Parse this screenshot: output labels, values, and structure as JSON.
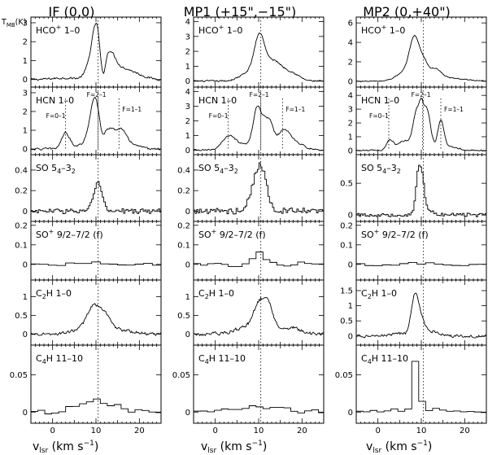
{
  "chart_data": {
    "type": "line",
    "y_axis_label": "T_MB(K)",
    "x_axis_label": "v_lsr (km s^-1)",
    "xlim": [
      -5,
      25
    ],
    "x_ticks": [
      0,
      10,
      20
    ],
    "reference_velocity": 10.5,
    "columns": [
      {
        "title": "IF (0,0)"
      },
      {
        "title": "MP1 (+15\",−15\")"
      },
      {
        "title": "MP2 (0,+40\")"
      }
    ],
    "rows": [
      {
        "label": "HCO+ 1–0",
        "label_main": "HCO",
        "label_sup": "+",
        "label_tail": " 1–0"
      },
      {
        "label": "HCN 1–0",
        "label_main": "HCN 1–0",
        "label_sup": "",
        "label_tail": ""
      },
      {
        "label": "SO 5_4–3_2",
        "label_main": "SO 5",
        "label_sub1": "4",
        "label_mid": "–3",
        "label_sub2": "2"
      },
      {
        "label": "SO+ 9/2–7/2 (f)",
        "label_main": "SO",
        "label_sup": "+",
        "label_tail": " 9/2–7/2 (f)"
      },
      {
        "label": "C2H 1–0",
        "label_main": "C",
        "label_sub1": "2",
        "label_tail": "H 1–0"
      },
      {
        "label": "C4H 11–10",
        "label_main": "C",
        "label_sub1": "4",
        "label_tail": "H 11–10"
      }
    ],
    "hyperfine_labels": {
      "f01": "F=0–1",
      "f21": "F=2–1",
      "f11": "F=1–1"
    },
    "panels": [
      [
        {
          "ylim": [
            -0.4,
            3.3
          ],
          "yticks": [
            0,
            1,
            2,
            3
          ],
          "ytick_labels": [
            "0",
            "1",
            "2",
            "3"
          ],
          "step": false,
          "noise": 0.05,
          "components": [
            [
              8.3,
              1.0,
              0.5
            ],
            [
              10.1,
              1.0,
              2.8
            ],
            [
              11.5,
              0.6,
              -1.4
            ],
            [
              13.0,
              1.3,
              1.2
            ],
            [
              15.5,
              2.5,
              0.5
            ],
            [
              19.0,
              2.5,
              0.2
            ],
            [
              3.0,
              3.0,
              0.08
            ]
          ]
        },
        {
          "ylim": [
            -0.3,
            3.3
          ],
          "yticks": [
            0,
            1,
            2,
            3
          ],
          "ytick_labels": [
            "0",
            "1",
            "2",
            "3"
          ],
          "step": false,
          "noise": 0.05,
          "hyperfine": [
            3.0,
            10.5,
            15.3
          ],
          "components": [
            [
              3.0,
              0.9,
              0.8
            ],
            [
              9.8,
              1.2,
              2.6
            ],
            [
              11.3,
              0.6,
              -0.5
            ],
            [
              13.0,
              1.0,
              0.9
            ],
            [
              15.5,
              1.2,
              0.9
            ],
            [
              17.5,
              2.0,
              0.3
            ],
            [
              7.0,
              3.0,
              0.2
            ]
          ]
        },
        {
          "ylim": [
            -0.1,
            0.55
          ],
          "yticks": [
            0,
            0.2,
            0.4
          ],
          "ytick_labels": [
            "0",
            "0.2",
            "0.4"
          ],
          "step": true,
          "noise": 0.025,
          "components": [
            [
              10.7,
              0.8,
              0.22
            ],
            [
              9.8,
              1.0,
              0.08
            ]
          ]
        },
        {
          "ylim": [
            -0.08,
            0.22
          ],
          "yticks": [
            0,
            0.1,
            0.2
          ],
          "ytick_labels": [
            "0",
            "0.1",
            "0.2"
          ],
          "step": true,
          "noise": 0.008,
          "bins": 2.0,
          "components": [
            [
              10.0,
              3.0,
              0.012
            ]
          ]
        },
        {
          "ylim": [
            -0.3,
            1.45
          ],
          "yticks": [
            0,
            0.5,
            1
          ],
          "ytick_labels": [
            "0",
            "0.5",
            "1"
          ],
          "step": false,
          "noise": 0.035,
          "components": [
            [
              9.6,
              1.6,
              0.72
            ],
            [
              12.3,
              1.2,
              0.3
            ],
            [
              15.0,
              3.0,
              0.12
            ],
            [
              6.0,
              2.0,
              0.1
            ]
          ]
        },
        {
          "ylim": [
            -0.015,
            0.09
          ],
          "yticks": [
            0,
            0.05
          ],
          "ytick_labels": [
            "0",
            "0.05"
          ],
          "step": true,
          "noise": 0.003,
          "bins": 1.6,
          "components": [
            [
              10.0,
              4.0,
              0.016
            ]
          ]
        }
      ],
      [
        {
          "ylim": [
            -0.4,
            4.3
          ],
          "yticks": [
            0,
            1,
            2,
            3,
            4
          ],
          "ytick_labels": [
            "0",
            "1",
            "2",
            "3",
            "4"
          ],
          "step": false,
          "noise": 0.05,
          "components": [
            [
              10.2,
              1.2,
              2.8
            ],
            [
              13.5,
              1.8,
              1.3
            ],
            [
              17.5,
              1.8,
              0.55
            ],
            [
              7.5,
              2.0,
              0.5
            ]
          ]
        },
        {
          "ylim": [
            -0.3,
            4.3
          ],
          "yticks": [
            0,
            1,
            2,
            3,
            4
          ],
          "ytick_labels": [
            "0",
            "1",
            "2",
            "3",
            "4"
          ],
          "step": false,
          "noise": 0.05,
          "hyperfine": [
            3.0,
            10.5,
            15.5
          ],
          "components": [
            [
              3.0,
              1.5,
              0.8
            ],
            [
              9.8,
              1.0,
              2.9
            ],
            [
              11.3,
              0.5,
              0.4
            ],
            [
              12.4,
              0.9,
              1.9
            ],
            [
              15.8,
              1.6,
              1.3
            ],
            [
              19.0,
              2.0,
              0.35
            ],
            [
              6.0,
              2.5,
              0.35
            ]
          ]
        },
        {
          "ylim": [
            -0.1,
            0.55
          ],
          "yticks": [
            0,
            0.2,
            0.4
          ],
          "ytick_labels": [
            "0",
            "0.2",
            "0.4"
          ],
          "step": true,
          "noise": 0.03,
          "components": [
            [
              10.0,
              1.2,
              0.38
            ],
            [
              11.5,
              1.0,
              0.15
            ],
            [
              8.0,
              1.2,
              0.06
            ]
          ]
        },
        {
          "ylim": [
            -0.08,
            0.22
          ],
          "yticks": [
            0,
            0.1,
            0.2
          ],
          "ytick_labels": [
            "0",
            "0.1",
            "0.2"
          ],
          "step": true,
          "noise": 0.012,
          "bins": 1.6,
          "components": [
            [
              10.2,
              1.5,
              0.055
            ]
          ]
        },
        {
          "ylim": [
            -0.3,
            1.45
          ],
          "yticks": [
            0,
            0.5,
            1
          ],
          "ytick_labels": [
            "0",
            "0.5",
            "1"
          ],
          "step": false,
          "noise": 0.04,
          "components": [
            [
              10.0,
              1.4,
              0.75
            ],
            [
              12.3,
              1.2,
              0.7
            ],
            [
              17.5,
              2.0,
              0.17
            ],
            [
              6.0,
              2.0,
              0.15
            ]
          ]
        },
        {
          "ylim": [
            -0.015,
            0.09
          ],
          "yticks": [
            0,
            0.05
          ],
          "ytick_labels": [
            "0",
            "0.05"
          ],
          "step": true,
          "noise": 0.003,
          "bins": 1.6,
          "components": [
            [
              10.0,
              5.0,
              0.008
            ]
          ]
        }
      ],
      [
        {
          "ylim": [
            -0.6,
            6.6
          ],
          "yticks": [
            0,
            2,
            4,
            6
          ],
          "ytick_labels": [
            "0",
            "2",
            "4",
            "6"
          ],
          "step": false,
          "noise": 0.05,
          "components": [
            [
              8.5,
              1.2,
              4.3
            ],
            [
              10.7,
              0.8,
              1.2
            ],
            [
              13.0,
              1.5,
              1.2
            ],
            [
              6.0,
              2.0,
              0.8
            ],
            [
              17.0,
              3.0,
              0.3
            ]
          ]
        },
        {
          "ylim": [
            -0.3,
            4.6
          ],
          "yticks": [
            0,
            1,
            2,
            3,
            4
          ],
          "ytick_labels": [
            "0",
            "1",
            "2",
            "3",
            "4"
          ],
          "step": false,
          "noise": 0.05,
          "hyperfine": [
            2.5,
            10.3,
            14.5
          ],
          "components": [
            [
              2.8,
              0.8,
              0.8
            ],
            [
              6.0,
              1.2,
              0.7
            ],
            [
              9.0,
              0.9,
              2.9
            ],
            [
              10.0,
              0.4,
              1.0
            ],
            [
              11.2,
              0.9,
              3.0
            ],
            [
              14.5,
              0.7,
              2.0
            ],
            [
              16.5,
              2.0,
              0.3
            ]
          ]
        },
        {
          "ylim": [
            -0.1,
            0.95
          ],
          "yticks": [
            0,
            0.5
          ],
          "ytick_labels": [
            "0",
            "0.5"
          ],
          "step": true,
          "noise": 0.03,
          "components": [
            [
              9.5,
              0.7,
              0.72
            ],
            [
              10.5,
              0.6,
              0.25
            ],
            [
              12.5,
              1.0,
              0.05
            ]
          ]
        },
        {
          "ylim": [
            -0.08,
            0.22
          ],
          "yticks": [
            0,
            0.1,
            0.2
          ],
          "ytick_labels": [
            "0",
            "0.1",
            "0.2"
          ],
          "step": true,
          "noise": 0.008,
          "bins": 2.0,
          "components": [
            [
              10.0,
              4.0,
              0.005
            ]
          ]
        },
        {
          "ylim": [
            -0.3,
            1.85
          ],
          "yticks": [
            0,
            0.5,
            1,
            1.5
          ],
          "ytick_labels": [
            "0",
            "0.5",
            "1",
            "1.5"
          ],
          "step": false,
          "noise": 0.04,
          "components": [
            [
              8.5,
              0.8,
              1.3
            ],
            [
              10.0,
              0.8,
              0.5
            ],
            [
              12.5,
              1.5,
              0.15
            ],
            [
              5.0,
              2.0,
              0.08
            ]
          ]
        },
        {
          "ylim": [
            -0.015,
            0.09
          ],
          "yticks": [
            0,
            0.05
          ],
          "ytick_labels": [
            "0",
            "0.05"
          ],
          "step": true,
          "noise": 0.002,
          "bins": 1.6,
          "components": [
            [
              8.8,
              0.7,
              0.065
            ],
            [
              10.0,
              6.0,
              0.004
            ]
          ]
        }
      ]
    ]
  }
}
